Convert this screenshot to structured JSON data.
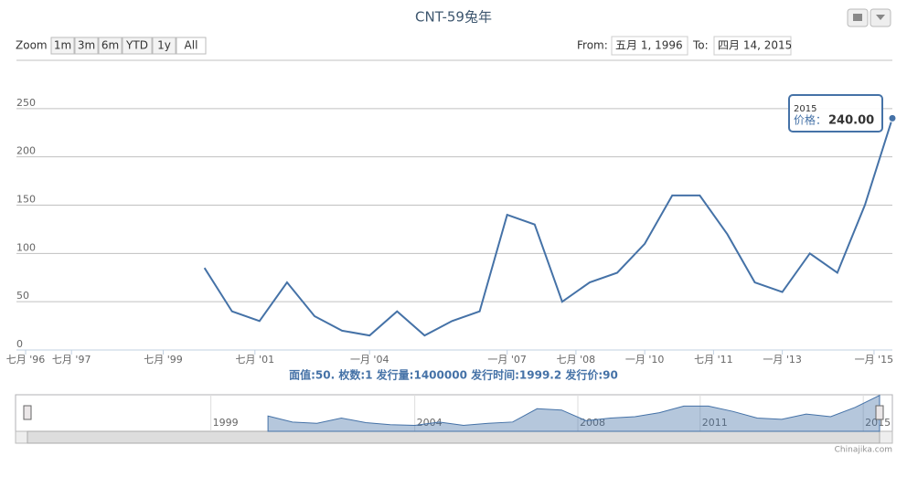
{
  "chart_data": {
    "type": "line",
    "title": "CNT-59兔年",
    "caption": "面值:50. 枚数:1 发行量:1400000 发行时间:1999.2 发行价:90",
    "credit": "Chinajika.com",
    "zoom": {
      "label": "Zoom",
      "buttons": [
        "1m",
        "3m",
        "6m",
        "YTD",
        "1y",
        "All"
      ]
    },
    "range": {
      "from_label": "From:",
      "from": "五月 1, 1996",
      "to_label": "To:",
      "to": "四月 14, 2015"
    },
    "tooltip": {
      "title": "2015",
      "label": "价格：",
      "value_label": "240.00"
    },
    "x": [
      2000.4,
      2001.0,
      2001.6,
      2002.2,
      2002.8,
      2003.4,
      2004.0,
      2004.6,
      2005.2,
      2005.8,
      2006.4,
      2007.0,
      2007.6,
      2008.2,
      2008.8,
      2009.4,
      2010.0,
      2010.6,
      2011.2,
      2011.8,
      2012.4,
      2013.0,
      2013.6,
      2014.2,
      2014.8,
      2015.4
    ],
    "series": [
      {
        "name": "价格",
        "color": "#4572a7",
        "values": [
          85,
          40,
          30,
          70,
          35,
          20,
          15,
          40,
          15,
          30,
          40,
          140,
          130,
          50,
          70,
          80,
          110,
          160,
          160,
          120,
          70,
          60,
          100,
          80,
          150,
          240
        ]
      }
    ],
    "xlim": [
      1996.3,
      2015.4
    ],
    "xticks": [
      {
        "value": 1996.5,
        "label": "七月 '96"
      },
      {
        "value": 1997.5,
        "label": "七月 '97"
      },
      {
        "value": 1999.5,
        "label": "七月 '99"
      },
      {
        "value": 2001.5,
        "label": "七月 '01"
      },
      {
        "value": 2004.0,
        "label": "一月 '04"
      },
      {
        "value": 2007.0,
        "label": "一月 '07"
      },
      {
        "value": 2008.5,
        "label": "七月 '08"
      },
      {
        "value": 2010.0,
        "label": "一月 '10"
      },
      {
        "value": 2011.5,
        "label": "七月 '11"
      },
      {
        "value": 2013.0,
        "label": "一月 '13"
      },
      {
        "value": 2015.0,
        "label": "一月 '15"
      }
    ],
    "ylim": [
      0,
      300
    ],
    "yticks": [
      0,
      50,
      100,
      150,
      200,
      250
    ],
    "grid": true,
    "navigator": {
      "xlim": [
        1994.5,
        2015.4
      ],
      "ylim": [
        -30,
        245
      ],
      "xticks": [
        1999,
        2004,
        2008,
        2011,
        2015
      ]
    }
  }
}
